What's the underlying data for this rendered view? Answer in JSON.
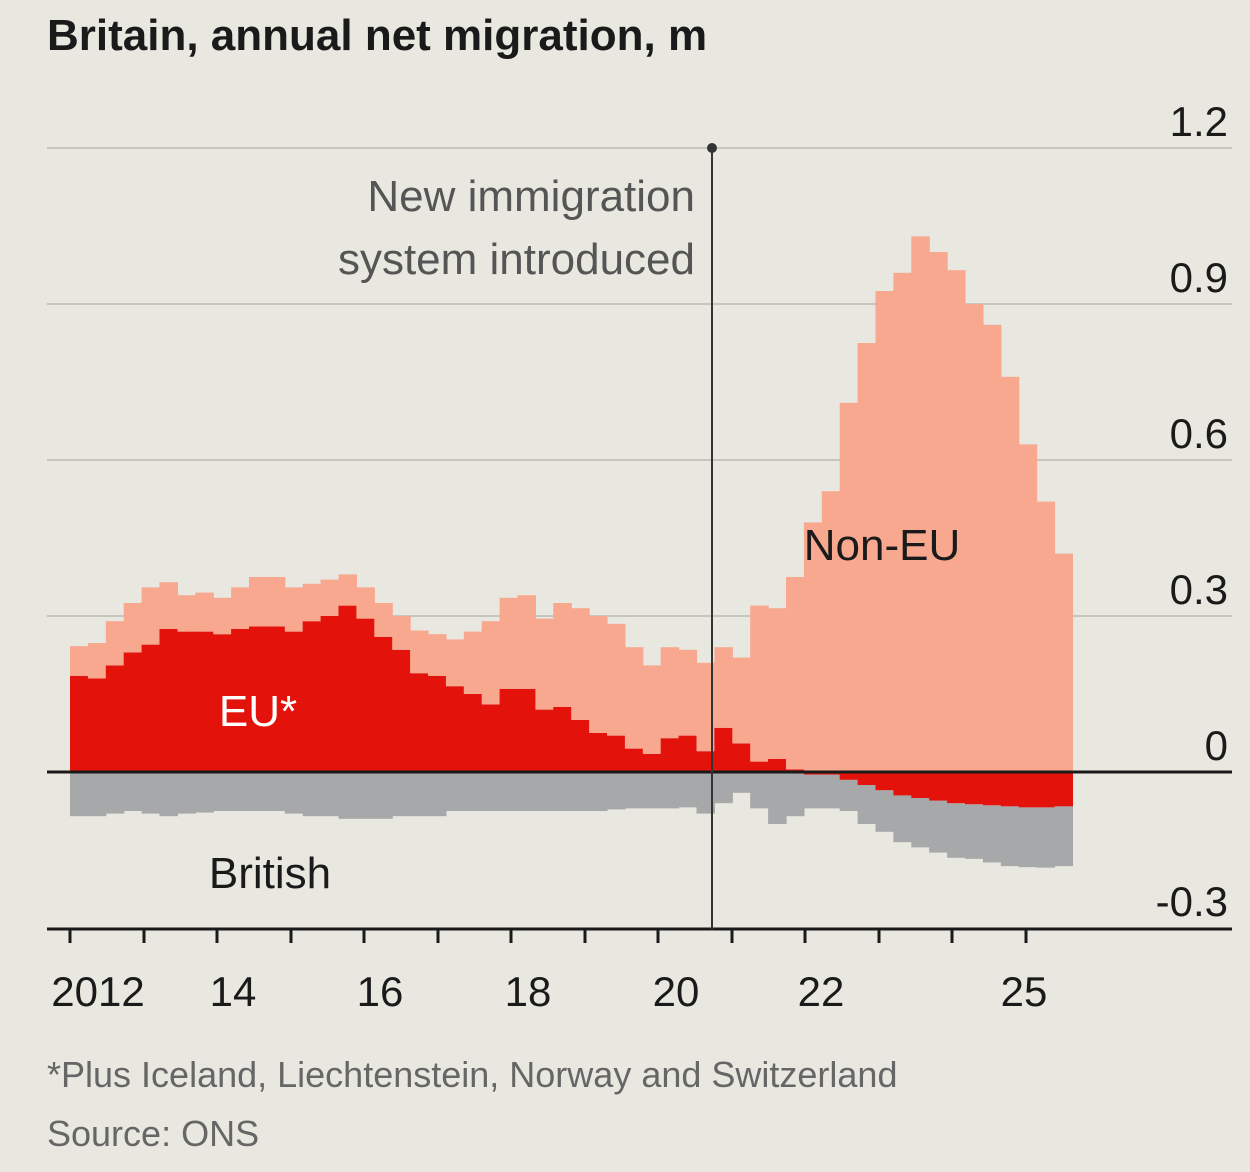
{
  "chart_data": {
    "type": "area",
    "title": "Britain, annual net migration, m",
    "unit": "m",
    "x_tick_labels": [
      "2012",
      "14",
      "16",
      "18",
      "20",
      "22",
      "25"
    ],
    "y_tick_labels": [
      "1.2",
      "0.9",
      "0.6",
      "0.3",
      "0",
      "-0.3"
    ],
    "ylim": [
      -0.3,
      1.2
    ],
    "grid": true,
    "series": [
      {
        "name": "Non-EU",
        "color": "#f7a88f",
        "values": [
          0.057,
          0.068,
          0.085,
          0.095,
          0.11,
          0.09,
          0.07,
          0.075,
          0.07,
          0.08,
          0.095,
          0.095,
          0.085,
          0.072,
          0.07,
          0.06,
          0.06,
          0.065,
          0.065,
          0.082,
          0.08,
          0.09,
          0.12,
          0.16,
          0.175,
          0.18,
          0.175,
          0.2,
          0.215,
          0.225,
          0.215,
          0.195,
          0.17,
          0.175,
          0.165,
          0.17,
          0.155,
          0.165,
          0.3,
          0.29,
          0.37,
          0.48,
          0.54,
          0.71,
          0.825,
          0.925,
          0.96,
          1.03,
          1.0,
          0.965,
          0.9,
          0.86,
          0.76,
          0.63,
          0.52,
          0.42
        ]
      },
      {
        "name": "EU*",
        "color": "#e3120b",
        "values": [
          0.185,
          0.18,
          0.205,
          0.23,
          0.245,
          0.275,
          0.27,
          0.27,
          0.265,
          0.275,
          0.28,
          0.28,
          0.27,
          0.29,
          0.3,
          0.32,
          0.295,
          0.26,
          0.235,
          0.19,
          0.185,
          0.165,
          0.15,
          0.13,
          0.16,
          0.16,
          0.12,
          0.125,
          0.1,
          0.075,
          0.07,
          0.045,
          0.035,
          0.065,
          0.07,
          0.04,
          0.085,
          0.055,
          0.02,
          0.025,
          0.005,
          -0.005,
          -0.005,
          -0.015,
          -0.025,
          -0.035,
          -0.045,
          -0.05,
          -0.055,
          -0.06,
          -0.062,
          -0.064,
          -0.066,
          -0.068,
          -0.068,
          -0.066
        ]
      },
      {
        "name": "British",
        "color": "#a7a8aa",
        "values": [
          -0.085,
          -0.085,
          -0.08,
          -0.075,
          -0.08,
          -0.085,
          -0.08,
          -0.078,
          -0.075,
          -0.075,
          -0.075,
          -0.075,
          -0.08,
          -0.085,
          -0.085,
          -0.09,
          -0.09,
          -0.09,
          -0.085,
          -0.085,
          -0.085,
          -0.075,
          -0.075,
          -0.075,
          -0.075,
          -0.075,
          -0.075,
          -0.075,
          -0.075,
          -0.075,
          -0.072,
          -0.07,
          -0.07,
          -0.07,
          -0.068,
          -0.08,
          -0.06,
          -0.04,
          -0.07,
          -0.1,
          -0.085,
          -0.065,
          -0.065,
          -0.06,
          -0.075,
          -0.08,
          -0.09,
          -0.095,
          -0.1,
          -0.105,
          -0.105,
          -0.11,
          -0.115,
          -0.115,
          -0.116,
          -0.115
        ]
      }
    ],
    "annotations": [
      {
        "line1": "New immigration",
        "line2": "system introduced"
      }
    ],
    "footnote": "*Plus Iceland, Liechtenstein, Norway and Switzerland",
    "source": "Source: ONS"
  }
}
